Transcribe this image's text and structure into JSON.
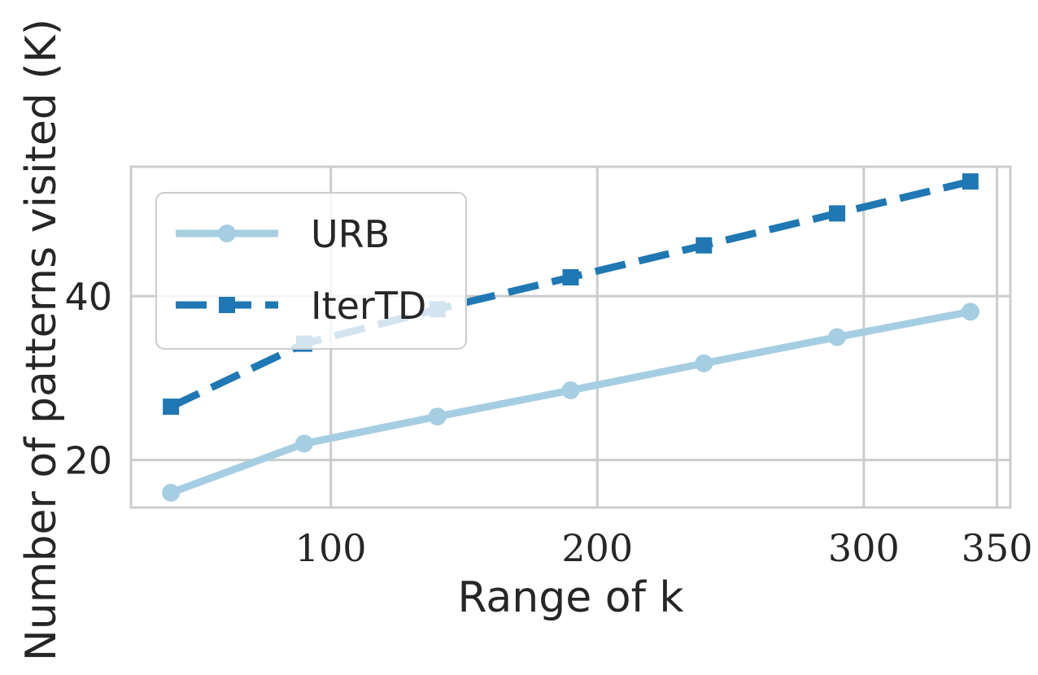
{
  "chart_data": {
    "type": "line",
    "title": "",
    "xlabel": "Range of k",
    "ylabel": "Number of patterns visited (K)",
    "xlim": [
      25,
      355
    ],
    "ylim": [
      14.2,
      55.8
    ],
    "xticks": [
      100,
      200,
      300,
      350
    ],
    "yticks": [
      20,
      40
    ],
    "grid": true,
    "legend_position": "top-left",
    "series": [
      {
        "name": "URB",
        "color": "#a6cee3",
        "line_style": "solid",
        "marker": "circle",
        "x": [
          40,
          90,
          140,
          190,
          240,
          290,
          340
        ],
        "y": [
          16.0,
          22.0,
          25.3,
          28.5,
          31.8,
          35.0,
          38.1
        ]
      },
      {
        "name": "IterTD",
        "color": "#1f78b4",
        "line_style": "dashed",
        "marker": "square",
        "x": [
          40,
          90,
          140,
          190,
          240,
          290,
          340
        ],
        "y": [
          26.5,
          34.2,
          38.4,
          42.3,
          46.2,
          50.1,
          54.0
        ]
      }
    ]
  }
}
